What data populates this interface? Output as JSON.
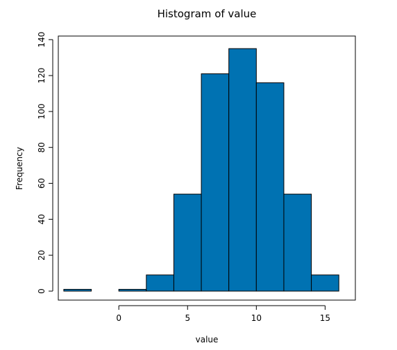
{
  "chart_data": {
    "type": "bar",
    "title": "Histogram of value",
    "xlabel": "value",
    "ylabel": "Frequency",
    "bin_edges": [
      -4,
      -2,
      0,
      2,
      4,
      6,
      8,
      10,
      12,
      14,
      16
    ],
    "counts": [
      1,
      0,
      1,
      9,
      54,
      121,
      135,
      116,
      54,
      9
    ],
    "xlim": [
      -4.4,
      17.2
    ],
    "ylim": [
      -5,
      142
    ],
    "x_ticks": [
      0,
      5,
      10,
      15
    ],
    "y_ticks": [
      0,
      20,
      40,
      60,
      80,
      100,
      120,
      140
    ],
    "bar_color": "#0072b2"
  }
}
